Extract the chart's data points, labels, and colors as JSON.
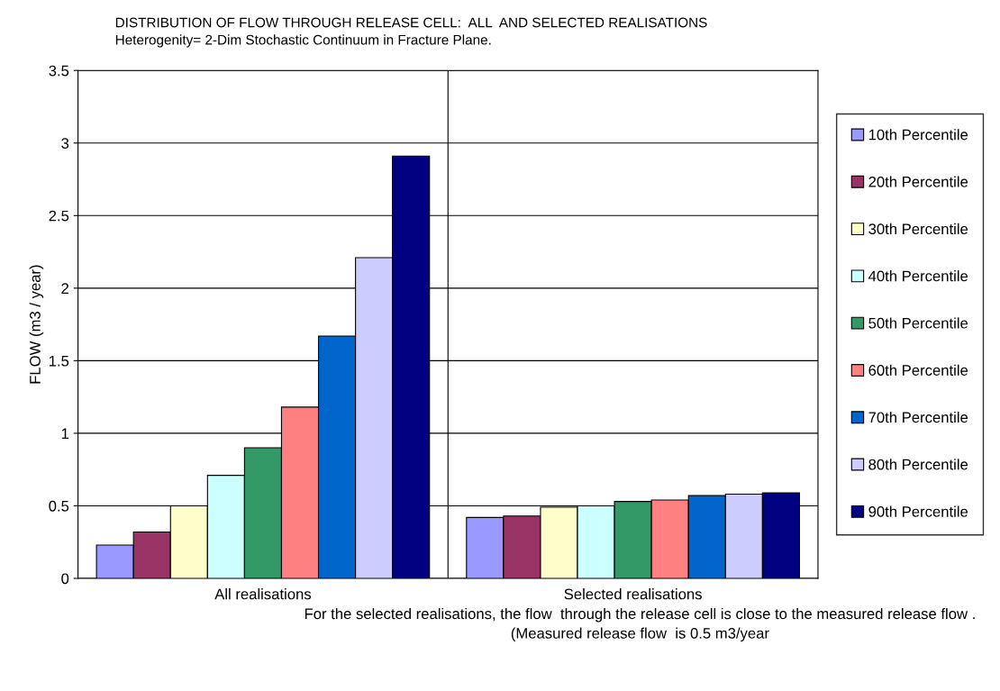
{
  "chart_data": {
    "type": "bar",
    "title": "DISTRIBUTION OF FLOW THROUGH RELEASE CELL:  ALL  AND SELECTED REALISATIONS",
    "subtitle": "Heterogenity= 2-Dim Stochastic Continuum in Fracture Plane.",
    "ylabel": "FLOW (m3 / year)",
    "categories": [
      "All realisations",
      "Selected realisations"
    ],
    "series": [
      {
        "name": "10th Percentile",
        "color": "#9999ff",
        "values": [
          0.23,
          0.42
        ]
      },
      {
        "name": "20th Percentile",
        "color": "#993366",
        "values": [
          0.32,
          0.43
        ]
      },
      {
        "name": "30th Percentile",
        "color": "#ffffcc",
        "values": [
          0.5,
          0.49
        ]
      },
      {
        "name": "40th Percentile",
        "color": "#ccffff",
        "values": [
          0.71,
          0.5
        ]
      },
      {
        "name": "50th Percentile",
        "color": "#339966",
        "values": [
          0.9,
          0.53
        ]
      },
      {
        "name": "60th Percentile",
        "color": "#ff8080",
        "values": [
          1.18,
          0.54
        ]
      },
      {
        "name": "70th Percentile",
        "color": "#0066cc",
        "values": [
          1.67,
          0.57
        ]
      },
      {
        "name": "80th Percentile",
        "color": "#ccccff",
        "values": [
          2.21,
          0.58
        ]
      },
      {
        "name": "90th Percentile",
        "color": "#000080",
        "values": [
          2.91,
          0.59
        ]
      }
    ],
    "ylim": [
      0,
      3.5
    ],
    "yticks": [
      0,
      0.5,
      1,
      1.5,
      2,
      2.5,
      3,
      3.5
    ],
    "grid": true,
    "legend": "right",
    "annotations": [
      "For the selected realisations, the flow  through the release cell is close to the measured release flow .\n(Measured release flow  is 0.5 m3/year"
    ]
  }
}
